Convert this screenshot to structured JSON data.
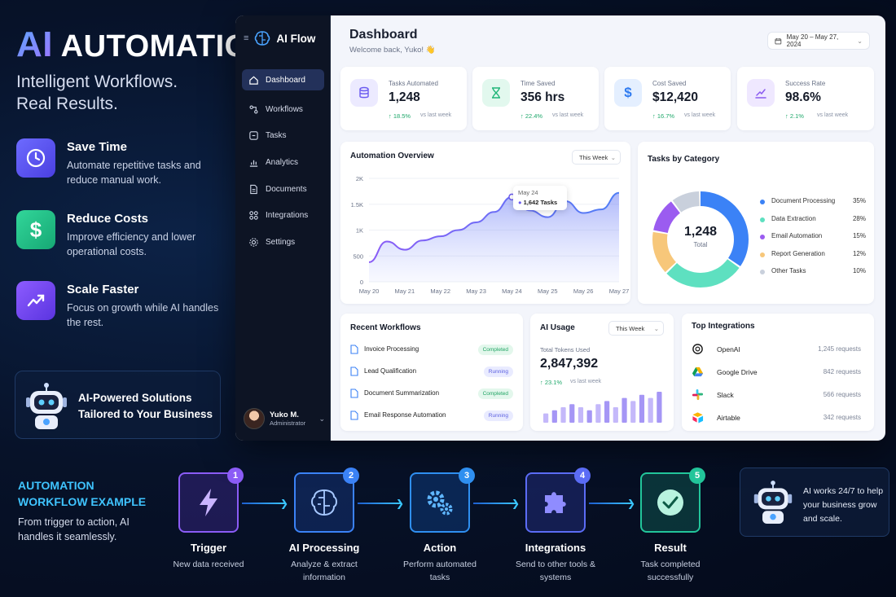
{
  "hero": {
    "title_ai": "AI",
    "title_rest": "AUTOMATION",
    "subtitle_line1": "Intelligent Workflows.",
    "subtitle_line2": "Real Results."
  },
  "features": [
    {
      "title": "Save Time",
      "desc": "Automate repetitive tasks and reduce manual work.",
      "icon": "clock-icon",
      "color": "#5b5bf0"
    },
    {
      "title": "Reduce Costs",
      "desc": "Improve efficiency and lower operational costs.",
      "icon": "dollar-icon",
      "color": "#22c08a"
    },
    {
      "title": "Scale Faster",
      "desc": "Focus on growth while AI handles the rest.",
      "icon": "trend-up-icon",
      "color": "#7a4df0"
    }
  ],
  "promo": {
    "title": "AI-Powered Solutions Tailored to Your Business"
  },
  "app": {
    "brand": "AI Flow",
    "nav": [
      {
        "label": "Dashboard",
        "icon": "home-icon",
        "active": true
      },
      {
        "label": "Workflows",
        "icon": "workflow-icon"
      },
      {
        "label": "Tasks",
        "icon": "tasks-icon"
      },
      {
        "label": "Analytics",
        "icon": "analytics-icon"
      },
      {
        "label": "Documents",
        "icon": "document-icon"
      },
      {
        "label": "Integrations",
        "icon": "integrations-icon"
      },
      {
        "label": "Settings",
        "icon": "gear-icon"
      }
    ],
    "user": {
      "name": "Yuko M.",
      "role": "Administrator"
    },
    "page_title": "Dashboard",
    "welcome": "Welcome back, Yuko! 👋",
    "date_range": "May 20 – May 27, 2024",
    "stats": [
      {
        "label": "Tasks Automated",
        "value": "1,248",
        "change": "↑ 18.5%",
        "vs": "vs last week",
        "icon": "database-icon",
        "bg": "#eceaff",
        "fg": "#6a5af0"
      },
      {
        "label": "Time Saved",
        "value": "356 hrs",
        "change": "↑ 22.4%",
        "vs": "vs last week",
        "icon": "hourglass-icon",
        "bg": "#e2f8ee",
        "fg": "#20b578"
      },
      {
        "label": "Cost Saved",
        "value": "$12,420",
        "change": "↑ 16.7%",
        "vs": "vs last week",
        "icon": "dollar-icon",
        "bg": "#e4efff",
        "fg": "#2f7bf0"
      },
      {
        "label": "Success Rate",
        "value": "98.6%",
        "change": "↑ 2.1%",
        "vs": "vs last week",
        "icon": "chart-line-icon",
        "bg": "#efe8ff",
        "fg": "#8a5af0"
      }
    ],
    "overview": {
      "title": "Automation Overview",
      "filter": "This Week",
      "tooltip_date": "May 24",
      "tooltip_value": "1,642 Tasks"
    },
    "category": {
      "title": "Tasks by Category",
      "center_value": "1,248",
      "center_label": "Total",
      "items": [
        {
          "name": "Document Processing",
          "pct": "35%",
          "value": 35,
          "color": "#3b82f6"
        },
        {
          "name": "Data Extraction",
          "pct": "28%",
          "value": 28,
          "color": "#5ee0c0"
        },
        {
          "name": "Email Automation",
          "pct": "15%",
          "value": 15,
          "color": "#f7c77a"
        },
        {
          "name": "Report Generation",
          "pct": "12%",
          "value": 12,
          "color": "#9b5cf0"
        },
        {
          "name": "Other Tasks",
          "pct": "10%",
          "value": 10,
          "color": "#c9d0dc"
        }
      ]
    },
    "recent": {
      "title": "Recent Workflows",
      "items": [
        {
          "name": "Invoice Processing",
          "status": "Completed"
        },
        {
          "name": "Lead Qualification",
          "status": "Running"
        },
        {
          "name": "Document Summarization",
          "status": "Completed"
        },
        {
          "name": "Email Response Automation",
          "status": "Running"
        }
      ]
    },
    "usage": {
      "title": "AI Usage",
      "filter": "This Week",
      "label": "Total Tokens Used",
      "value": "2,847,392",
      "change": "↑ 23.1%",
      "vs": "vs last week"
    },
    "integrations": {
      "title": "Top Integrations",
      "items": [
        {
          "name": "OpenAI",
          "requests": "1,245 requests",
          "icon": "openai-icon"
        },
        {
          "name": "Google Drive",
          "requests": "842 requests",
          "icon": "google-drive-icon"
        },
        {
          "name": "Slack",
          "requests": "566 requests",
          "icon": "slack-icon"
        },
        {
          "name": "Airtable",
          "requests": "342 requests",
          "icon": "airtable-icon"
        }
      ]
    }
  },
  "chart_data": [
    {
      "type": "area",
      "title": "Automation Overview",
      "categories": [
        "May 20",
        "May 21",
        "May 22",
        "May 23",
        "May 24",
        "May 25",
        "May 26",
        "May 27"
      ],
      "x": [
        0,
        0.5,
        1,
        1.5,
        2,
        2.5,
        3,
        3.5,
        4,
        4.5,
        5,
        5.5,
        6,
        6.5,
        7
      ],
      "values": [
        380,
        780,
        620,
        800,
        880,
        1000,
        1150,
        1350,
        1640,
        1380,
        1250,
        1560,
        1330,
        1400,
        1720
      ],
      "ytick_labels": [
        "0",
        "500",
        "1K",
        "1.5K",
        "2K"
      ],
      "ylim": [
        0,
        2000
      ]
    },
    {
      "type": "pie",
      "title": "Tasks by Category",
      "labels": [
        "Document Processing",
        "Data Extraction",
        "Email Automation",
        "Report Generation",
        "Other Tasks"
      ],
      "values": [
        35,
        28,
        15,
        12,
        10
      ]
    },
    {
      "type": "bar",
      "title": "AI Usage",
      "values": [
        3,
        4,
        5,
        6,
        5,
        4,
        6,
        7,
        5,
        8,
        7,
        9,
        8,
        10
      ]
    }
  ],
  "workflow": {
    "heading": "AUTOMATION WORKFLOW EXAMPLE",
    "desc": "From trigger to action, AI handles it seamlessly.",
    "steps": [
      {
        "num": "1",
        "title": "Trigger",
        "desc": "New data received",
        "color": "#8b5cf6",
        "icon": "lightning-icon"
      },
      {
        "num": "2",
        "title": "AI Processing",
        "desc": "Analyze & extract information",
        "color": "#3b82f6",
        "icon": "brain-icon"
      },
      {
        "num": "3",
        "title": "Action",
        "desc": "Perform automated tasks",
        "color": "#2f8ff0",
        "icon": "gears-icon"
      },
      {
        "num": "4",
        "title": "Integrations",
        "desc": "Send to other tools & systems",
        "color": "#5b6cf5",
        "icon": "puzzle-icon"
      },
      {
        "num": "5",
        "title": "Result",
        "desc": "Task completed successfully",
        "color": "#22c59a",
        "icon": "check-icon"
      }
    ],
    "note": "AI works 24/7 to help your business grow and scale."
  }
}
